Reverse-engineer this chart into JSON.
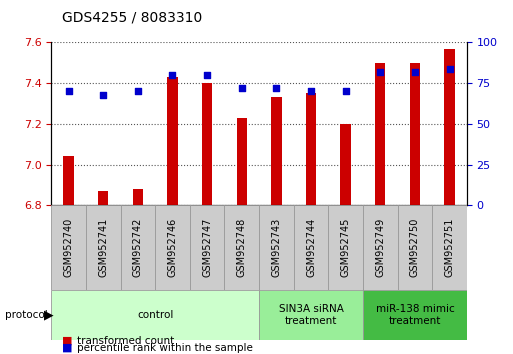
{
  "title": "GDS4255 / 8083310",
  "samples": [
    "GSM952740",
    "GSM952741",
    "GSM952742",
    "GSM952746",
    "GSM952747",
    "GSM952748",
    "GSM952743",
    "GSM952744",
    "GSM952745",
    "GSM952749",
    "GSM952750",
    "GSM952751"
  ],
  "transformed_counts": [
    7.04,
    6.87,
    6.88,
    7.43,
    7.4,
    7.23,
    7.33,
    7.35,
    7.2,
    7.5,
    7.5,
    7.57
  ],
  "percentile_ranks": [
    70,
    68,
    70,
    80,
    80,
    72,
    72,
    70,
    70,
    82,
    82,
    84
  ],
  "bar_color": "#cc0000",
  "dot_color": "#0000cc",
  "ylim_left": [
    6.8,
    7.6
  ],
  "ylim_right": [
    0,
    100
  ],
  "yticks_left": [
    6.8,
    7.0,
    7.2,
    7.4,
    7.6
  ],
  "yticks_right": [
    0,
    25,
    50,
    75,
    100
  ],
  "groups": [
    {
      "label": "control",
      "start": 0,
      "end": 5,
      "color": "#ccffcc",
      "edge_color": "#999999"
    },
    {
      "label": "SIN3A siRNA\ntreatment",
      "start": 6,
      "end": 8,
      "color": "#99ee99",
      "edge_color": "#999999"
    },
    {
      "label": "miR-138 mimic\ntreatment",
      "start": 9,
      "end": 11,
      "color": "#44bb44",
      "edge_color": "#999999"
    }
  ],
  "grid_style": "dotted",
  "grid_color": "#555555",
  "bar_width": 0.3,
  "xtick_box_color": "#cccccc",
  "xtick_box_edge": "#999999"
}
